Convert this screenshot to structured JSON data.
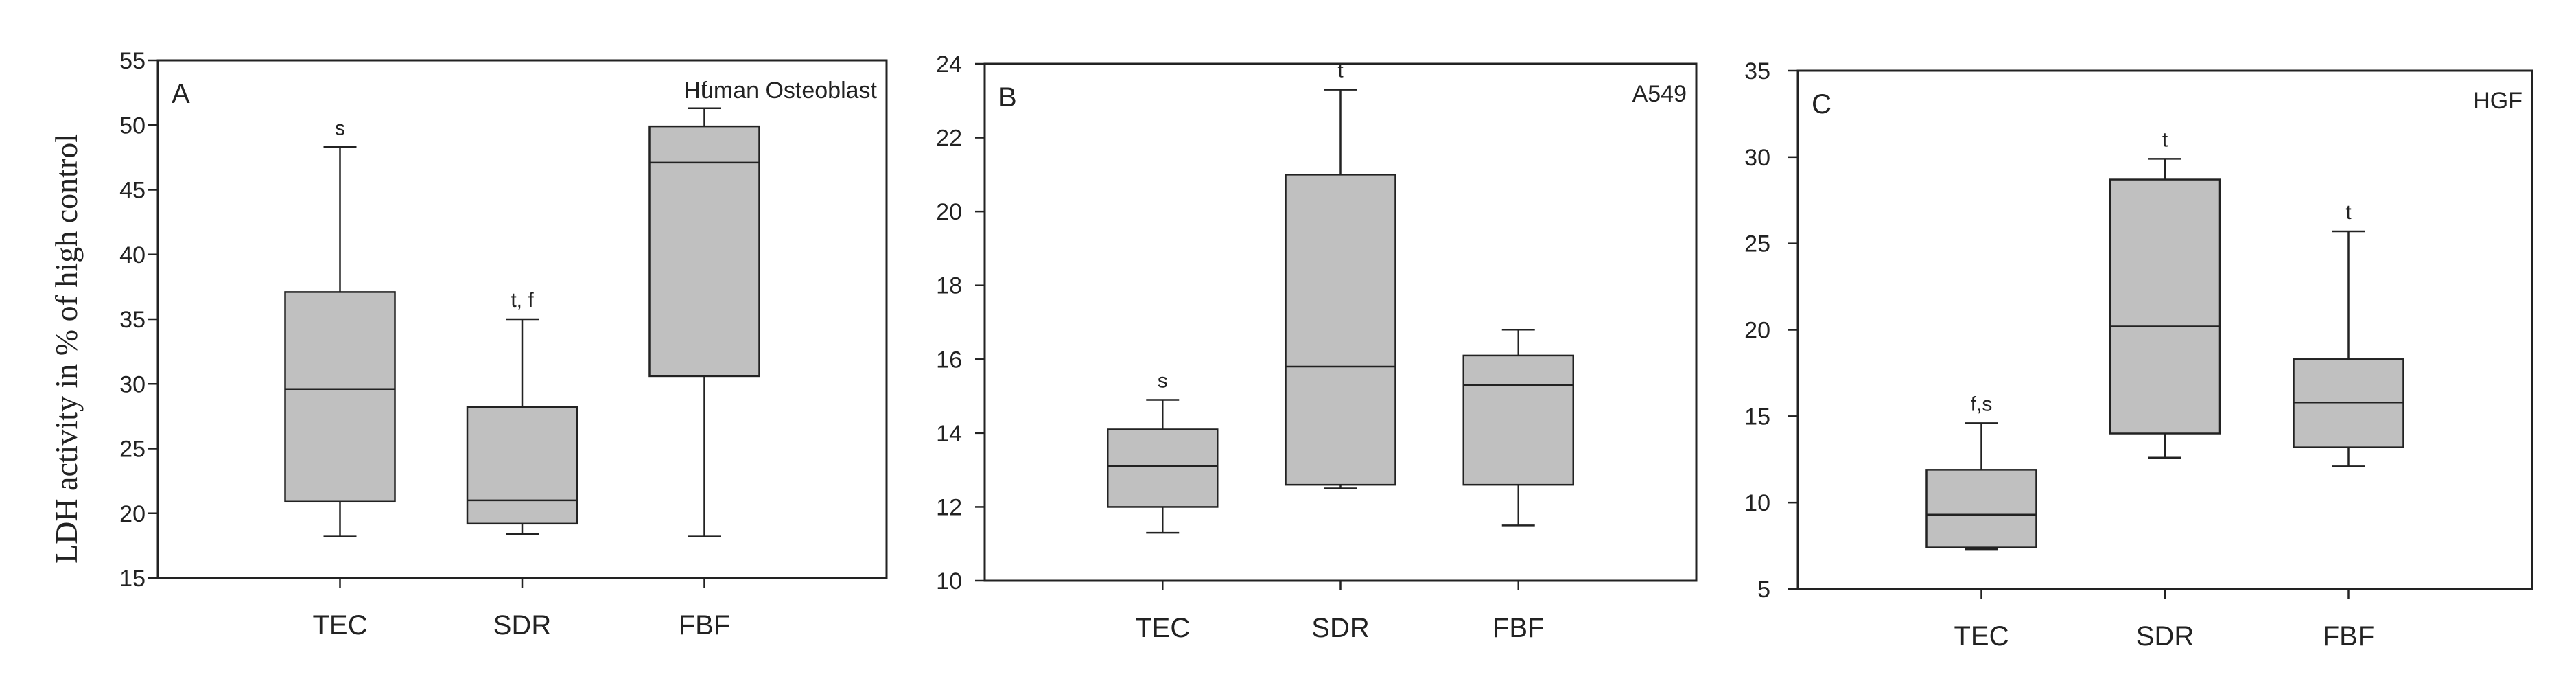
{
  "y_axis_label": "LDH activity in % of high control",
  "chart_data": [
    {
      "type": "box",
      "panel": "A",
      "title": "Human Osteoblast",
      "ylabel": "LDH activity in % of high control",
      "ylim": [
        15,
        55
      ],
      "yticks": [
        15,
        20,
        25,
        30,
        35,
        40,
        45,
        50,
        55
      ],
      "categories": [
        "TEC",
        "SDR",
        "FBF"
      ],
      "boxes": [
        {
          "name": "TEC",
          "whisker_low": 18.2,
          "q1": 20.9,
          "median": 29.6,
          "q3": 37.1,
          "whisker_high": 48.3,
          "annotation": "s"
        },
        {
          "name": "SDR",
          "whisker_low": 18.4,
          "q1": 19.2,
          "median": 21.0,
          "q3": 28.2,
          "whisker_high": 35.0,
          "annotation": "t, f"
        },
        {
          "name": "FBF",
          "whisker_low": 18.2,
          "q1": 30.6,
          "median": 47.1,
          "q3": 49.9,
          "whisker_high": 51.3,
          "annotation": "f"
        }
      ]
    },
    {
      "type": "box",
      "panel": "B",
      "title": "A549",
      "ylim": [
        10,
        24
      ],
      "yticks": [
        10,
        12,
        14,
        16,
        18,
        20,
        22,
        24
      ],
      "categories": [
        "TEC",
        "SDR",
        "FBF"
      ],
      "boxes": [
        {
          "name": "TEC",
          "whisker_low": 11.3,
          "q1": 12.0,
          "median": 13.1,
          "q3": 14.1,
          "whisker_high": 14.9,
          "annotation": "s"
        },
        {
          "name": "SDR",
          "whisker_low": 12.5,
          "q1": 12.6,
          "median": 15.8,
          "q3": 21.0,
          "whisker_high": 23.3,
          "annotation": "t"
        },
        {
          "name": "FBF",
          "whisker_low": 11.5,
          "q1": 12.6,
          "median": 15.3,
          "q3": 16.1,
          "whisker_high": 16.8,
          "annotation": ""
        }
      ]
    },
    {
      "type": "box",
      "panel": "C",
      "title": "HGF",
      "ylim": [
        5,
        35
      ],
      "yticks": [
        5,
        10,
        15,
        20,
        25,
        30,
        35
      ],
      "categories": [
        "TEC",
        "SDR",
        "FBF"
      ],
      "boxes": [
        {
          "name": "TEC",
          "whisker_low": 7.3,
          "q1": 7.4,
          "median": 9.3,
          "q3": 11.9,
          "whisker_high": 14.6,
          "annotation": "f,s"
        },
        {
          "name": "SDR",
          "whisker_low": 12.6,
          "q1": 14.0,
          "median": 20.2,
          "q3": 28.7,
          "whisker_high": 29.9,
          "annotation": "t"
        },
        {
          "name": "FBF",
          "whisker_low": 12.1,
          "q1": 13.2,
          "median": 15.8,
          "q3": 18.3,
          "whisker_high": 25.7,
          "annotation": "t"
        }
      ]
    }
  ]
}
